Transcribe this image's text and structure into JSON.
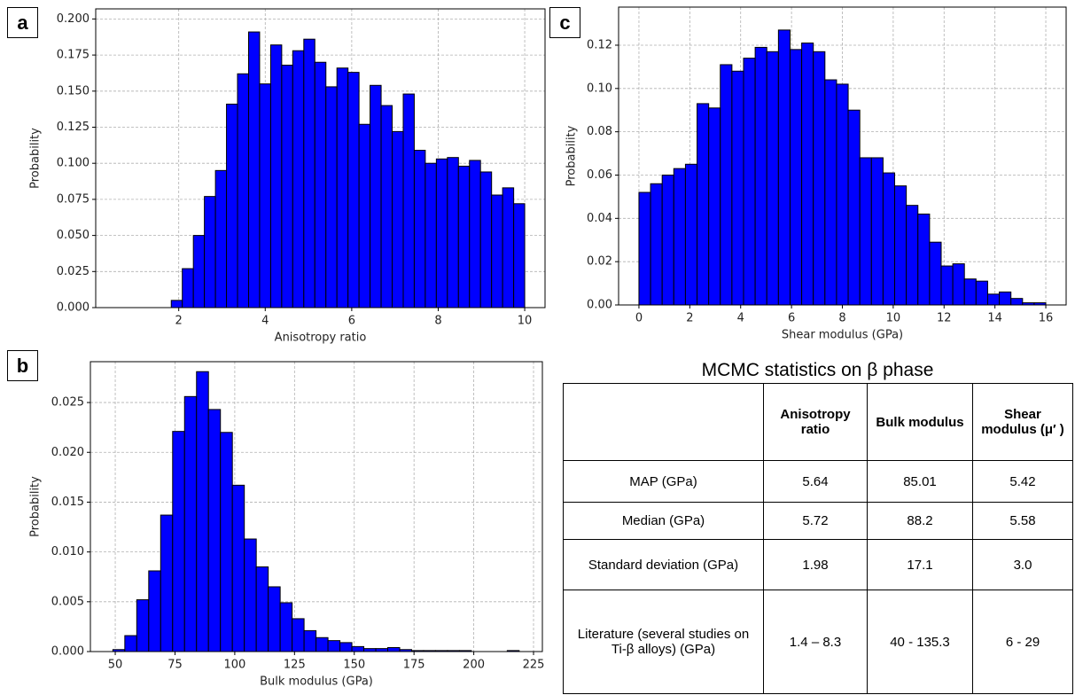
{
  "chart_data": [
    {
      "type": "histogram",
      "panel_label": "a",
      "x_label": "Anisotropy ratio",
      "y_label": "Probability",
      "color": "#0000ff",
      "edgecolor": "#000000",
      "grid": true,
      "bins": [
        0.55,
        0.805,
        1.061,
        1.316,
        1.572,
        1.827,
        2.082,
        2.338,
        2.593,
        2.849,
        3.104,
        3.359,
        3.615,
        3.87,
        4.126,
        4.381,
        4.636,
        4.892,
        5.147,
        5.403,
        5.658,
        5.914,
        6.169,
        6.424,
        6.68,
        6.935,
        7.191,
        7.446,
        7.701,
        7.957,
        8.212,
        8.468,
        8.723,
        8.978,
        9.234,
        9.489,
        9.745,
        10.0
      ],
      "values": [
        0,
        0,
        0,
        0,
        0,
        0.005,
        0.027,
        0.05,
        0.077,
        0.095,
        0.141,
        0.162,
        0.191,
        0.155,
        0.182,
        0.168,
        0.178,
        0.186,
        0.17,
        0.153,
        0.166,
        0.163,
        0.127,
        0.154,
        0.14,
        0.122,
        0.148,
        0.109,
        0.1,
        0.103,
        0.104,
        0.098,
        0.102,
        0.094,
        0.078,
        0.083,
        0.072
      ],
      "xlim": [
        0.08,
        10.47
      ],
      "xticks": [
        2,
        4,
        6,
        8,
        10
      ],
      "ylim": [
        0,
        0.207
      ],
      "yticks": [
        {
          "value": 0,
          "label": "0.000"
        },
        {
          "value": 0.025,
          "label": "0.025"
        },
        {
          "value": 0.05,
          "label": "0.050"
        },
        {
          "value": 0.075,
          "label": "0.075"
        },
        {
          "value": 0.1,
          "label": "0.100"
        },
        {
          "value": 0.125,
          "label": "0.125"
        },
        {
          "value": 0.15,
          "label": "0.150"
        },
        {
          "value": 0.175,
          "label": "0.175"
        },
        {
          "value": 0.2,
          "label": "0.200"
        }
      ]
    },
    {
      "type": "histogram",
      "panel_label": "b",
      "x_label": "Bulk modulus (GPa)",
      "y_label": "Probability",
      "color": "#0000ff",
      "edgecolor": "#000000",
      "grid": true,
      "bins": [
        49,
        54,
        59,
        64,
        69,
        74,
        79,
        84,
        89,
        94,
        99,
        104,
        109,
        114,
        119,
        124,
        129,
        134,
        139,
        144,
        149,
        154,
        159,
        164,
        169,
        174,
        179,
        184,
        189,
        194,
        199,
        204,
        209,
        214,
        219
      ],
      "values": [
        0.0002,
        0.0016,
        0.0052,
        0.0081,
        0.0137,
        0.0221,
        0.0256,
        0.0281,
        0.0243,
        0.022,
        0.0167,
        0.0113,
        0.0085,
        0.0065,
        0.0049,
        0.0033,
        0.0021,
        0.0014,
        0.0011,
        0.0009,
        0.0005,
        0.0003,
        0.0003,
        0.0004,
        0.0002,
        0.0001,
        0.0001,
        0.0001,
        0.0001,
        0.0001,
        0,
        0,
        0,
        0.0001
      ],
      "xlim": [
        39.6,
        228.7
      ],
      "xticks": [
        50,
        75,
        100,
        125,
        150,
        175,
        200,
        225
      ],
      "ylim": [
        0,
        0.0291
      ],
      "yticks": [
        {
          "value": 0,
          "label": "0.000"
        },
        {
          "value": 0.005,
          "label": "0.005"
        },
        {
          "value": 0.01,
          "label": "0.010"
        },
        {
          "value": 0.015,
          "label": "0.015"
        },
        {
          "value": 0.02,
          "label": "0.020"
        },
        {
          "value": 0.025,
          "label": "0.025"
        }
      ]
    },
    {
      "type": "histogram",
      "panel_label": "c",
      "x_label": "Shear modulus (GPa)",
      "y_label": "Probability",
      "color": "#0000ff",
      "edgecolor": "#000000",
      "grid": true,
      "bins": [
        0,
        0.457,
        0.914,
        1.371,
        1.829,
        2.286,
        2.743,
        3.2,
        3.657,
        4.114,
        4.571,
        5.029,
        5.486,
        5.943,
        6.4,
        6.857,
        7.314,
        7.771,
        8.229,
        8.686,
        9.143,
        9.6,
        10.057,
        10.514,
        10.971,
        11.429,
        11.886,
        12.343,
        12.8,
        13.257,
        13.714,
        14.171,
        14.629,
        15.086,
        15.543,
        16
      ],
      "values": [
        0.052,
        0.056,
        0.06,
        0.063,
        0.065,
        0.093,
        0.091,
        0.111,
        0.108,
        0.114,
        0.119,
        0.117,
        0.127,
        0.118,
        0.121,
        0.117,
        0.104,
        0.102,
        0.09,
        0.068,
        0.068,
        0.061,
        0.055,
        0.046,
        0.042,
        0.029,
        0.018,
        0.019,
        0.012,
        0.011,
        0.005,
        0.006,
        0.003,
        0.001,
        0.001
      ],
      "xlim": [
        -0.8,
        16.8
      ],
      "xticks": [
        0,
        2,
        4,
        6,
        8,
        10,
        12,
        14,
        16
      ],
      "ylim": [
        0,
        0.1376
      ],
      "yticks": [
        {
          "value": 0,
          "label": "0.00"
        },
        {
          "value": 0.02,
          "label": "0.02"
        },
        {
          "value": 0.04,
          "label": "0.04"
        },
        {
          "value": 0.06,
          "label": "0.06"
        },
        {
          "value": 0.08,
          "label": "0.08"
        },
        {
          "value": 0.1,
          "label": "0.10"
        },
        {
          "value": 0.12,
          "label": "0.12"
        }
      ]
    }
  ],
  "table": {
    "title": "MCMC statistics on β phase",
    "columns": [
      "Anisotropy ratio",
      "Bulk modulus",
      "Shear modulus (μ′ )"
    ],
    "rows": [
      [
        "MAP (GPa)",
        "5.64",
        "85.01",
        "5.42"
      ],
      [
        "Median (GPa)",
        "5.72",
        "88.2",
        "5.58"
      ],
      [
        "Standard deviation (GPa)",
        "1.98",
        "17.1",
        "3.0"
      ],
      [
        "Literature (several studies on Ti-β alloys) (GPa)",
        "1.4 – 8.3",
        "40 - 135.3",
        "6 - 29"
      ]
    ]
  }
}
